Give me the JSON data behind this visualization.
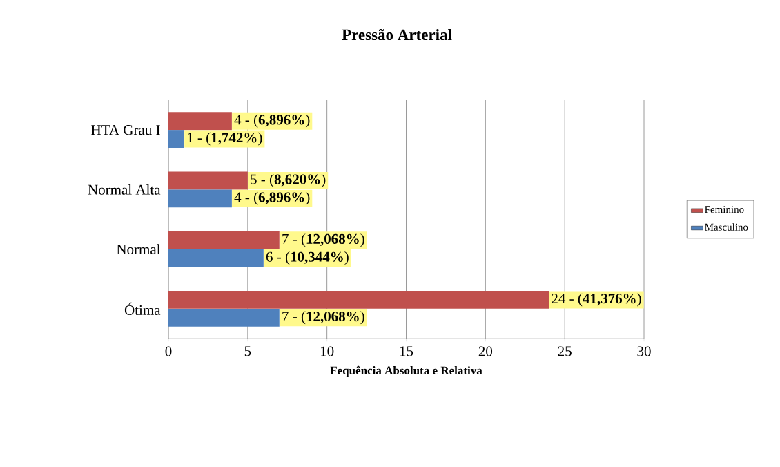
{
  "chart_data": {
    "type": "bar",
    "orientation": "horizontal",
    "title": "Pressão Arterial",
    "xlabel": "Fequência Absoluta e Relativa",
    "categories": [
      "HTA Grau I",
      "Normal Alta",
      "Normal",
      "Ótima"
    ],
    "series": [
      {
        "name": "Feminino",
        "color": "#c0504d",
        "values": [
          4,
          5,
          7,
          24
        ],
        "value_labels": [
          "4 - (**6,896%**)",
          "5 - (**8,620%**)",
          "7 - (**12,068%**)",
          "24 - (**41,376%**)"
        ]
      },
      {
        "name": "Masculino",
        "color": "#4f81bd",
        "values": [
          1,
          4,
          6,
          7
        ],
        "value_labels": [
          "1 - (**1,742%**)",
          "4 - (**6,896%**)",
          "6 - (**10,344%**)",
          "7 - (**12,068%**)"
        ]
      }
    ],
    "xlim": [
      0,
      30
    ],
    "xticks": [
      0,
      5,
      10,
      15,
      20,
      25,
      30
    ],
    "grid": "x",
    "legend": "right"
  }
}
